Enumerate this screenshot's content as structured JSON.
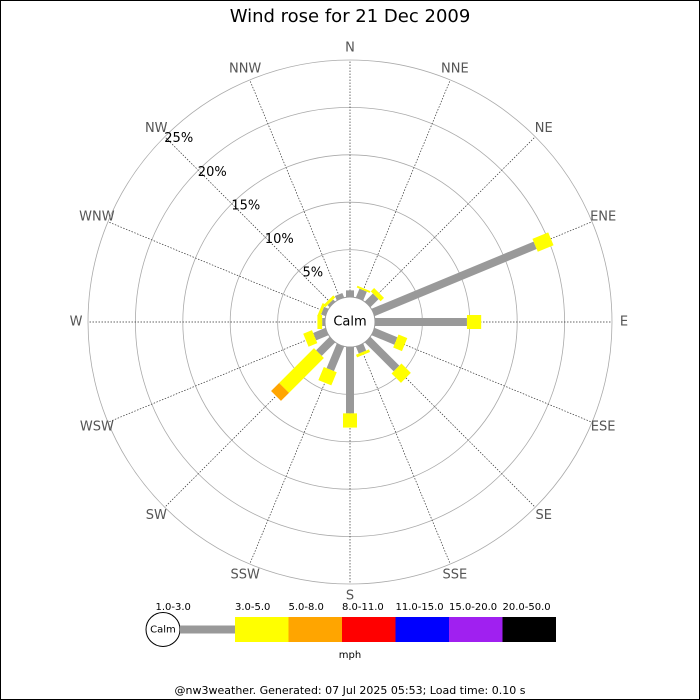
{
  "chart_data": {
    "type": "windrose",
    "title": "Wind rose for 21 Dec 2009",
    "categories": [
      "N",
      "NNE",
      "NE",
      "ENE",
      "E",
      "ESE",
      "SE",
      "SSE",
      "S",
      "SSW",
      "SW",
      "WSW",
      "W",
      "WNW",
      "NW",
      "NNW"
    ],
    "calm_label": "Calm",
    "ylim": [
      0,
      25
    ],
    "yticks": [
      {
        "value": 5,
        "label": "5%"
      },
      {
        "value": 10,
        "label": "10%"
      },
      {
        "value": 15,
        "label": "15%"
      },
      {
        "value": 20,
        "label": "20%"
      },
      {
        "value": 25,
        "label": "25%"
      }
    ],
    "series": [
      {
        "name": "1.0-3.0",
        "color": "#999999",
        "values": [
          0.7,
          1.0,
          1.2,
          18.5,
          9.7,
          2.6,
          4.3,
          0.8,
          7.0,
          2.8,
          2.0,
          1.4,
          0.3,
          0.5,
          0.3,
          0.5
        ]
      },
      {
        "name": "3.0-5.0",
        "color": "#ffff00",
        "values": [
          0,
          0.2,
          0.5,
          1.8,
          1.5,
          1.0,
          1.4,
          0.3,
          1.5,
          1.5,
          5.2,
          1.0,
          0.5,
          0.3,
          0.3,
          0
        ]
      },
      {
        "name": "5.0-8.0",
        "color": "#ffa500",
        "values": [
          0,
          0,
          0,
          0,
          0,
          0,
          0,
          0,
          0,
          0,
          1.2,
          0,
          0,
          0,
          0,
          0
        ]
      },
      {
        "name": "8.0-11.0",
        "color": "#ff0000",
        "values": [
          0,
          0,
          0,
          0,
          0,
          0,
          0,
          0,
          0,
          0,
          0,
          0,
          0,
          0,
          0,
          0
        ]
      },
      {
        "name": "11.0-15.0",
        "color": "#0000ff",
        "values": [
          0,
          0,
          0,
          0,
          0,
          0,
          0,
          0,
          0,
          0,
          0,
          0,
          0,
          0,
          0,
          0
        ]
      },
      {
        "name": "15.0-20.0",
        "color": "#a020f0",
        "values": [
          0,
          0,
          0,
          0,
          0,
          0,
          0,
          0,
          0,
          0,
          0,
          0,
          0,
          0,
          0,
          0
        ]
      },
      {
        "name": "20.0-50.0",
        "color": "#000000",
        "values": [
          0,
          0,
          0,
          0,
          0,
          0,
          0,
          0,
          0,
          0,
          0,
          0,
          0,
          0,
          0,
          0
        ]
      }
    ],
    "legend_title": "mph",
    "footer": "@nw3weather. Generated: 07 Jul 2025 05:53; Load time: 0.10 s"
  }
}
